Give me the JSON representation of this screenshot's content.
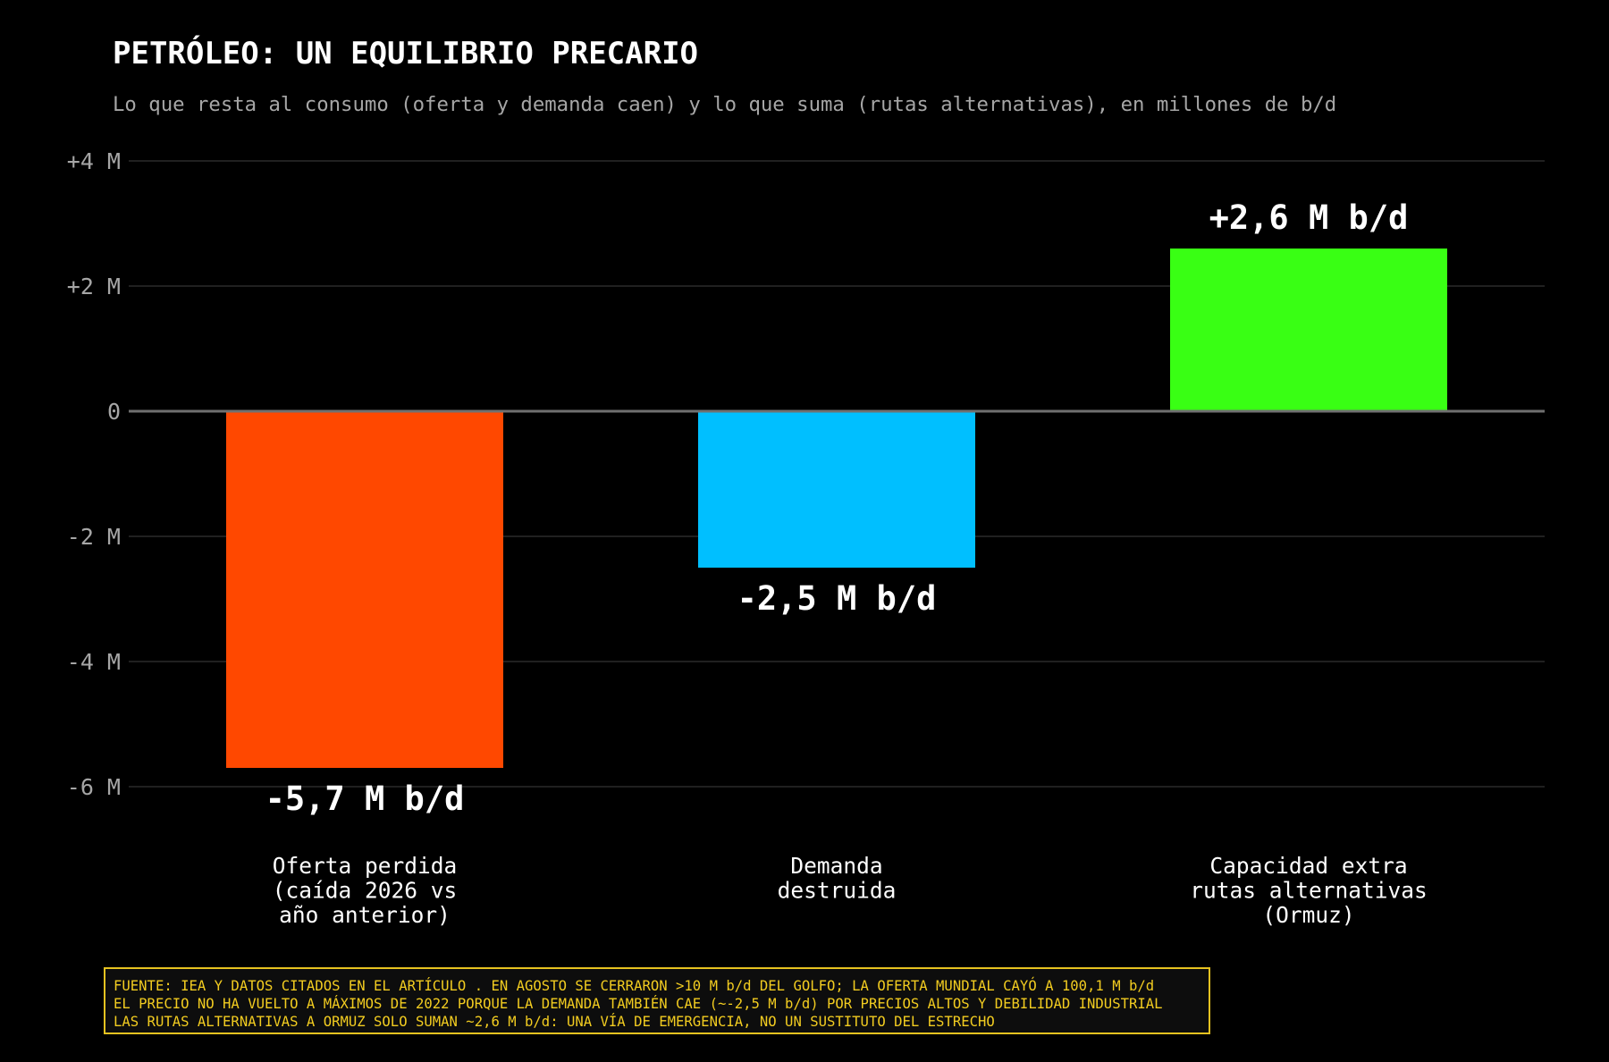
{
  "chart_data": {
    "type": "bar",
    "title": "PETRÓLEO: UN EQUILIBRIO PRECARIO",
    "subtitle": "Lo que resta al consumo (oferta y demanda caen) y lo que suma (rutas alternativas), en millones de b/d",
    "categories": [
      [
        "Oferta perdida",
        "(caída 2026 vs",
        "año anterior)"
      ],
      [
        "Demanda",
        "destruida"
      ],
      [
        "Capacidad extra",
        "rutas alternativas",
        "(Ormuz)"
      ]
    ],
    "values": [
      -5.7,
      -2.5,
      2.6
    ],
    "data_labels": [
      "-5,7 M b/d",
      "-2,5 M b/d",
      "+2,6 M b/d"
    ],
    "bar_colors": [
      "#ff4800",
      "#00bfff",
      "#39ff14"
    ],
    "ylim": [
      -6,
      4
    ],
    "yticks": [
      4,
      2,
      0,
      -2,
      -4,
      -6
    ],
    "ytick_labels": [
      "+4 M",
      "+2 M",
      "0",
      "-2 M",
      "-4 M",
      "-6 M"
    ],
    "grid": true,
    "xlabel": "",
    "ylabel": ""
  },
  "notes": [
    "FUENTE: IEA Y DATOS CITADOS EN EL ARTÍCULO . EN AGOSTO SE CERRARON >10 M b/d DEL GOLFO; LA OFERTA MUNDIAL CAYÓ A 100,1 M b/d",
    "EL PRECIO NO HA VUELTO A MÁXIMOS DE 2022 PORQUE LA DEMANDA TAMBIÉN CAE (~-2,5 M b/d) POR PRECIOS ALTOS Y DEBILIDAD INDUSTRIAL",
    "LAS RUTAS ALTERNATIVAS A ORMUZ SOLO SUMAN ~2,6 M b/d: UNA VÍA DE EMERGENCIA, NO UN SUSTITUTO DEL ESTRECHO"
  ],
  "colors": {
    "background": "#000000",
    "title": "#ffffff",
    "subtitle": "#a6a6a6",
    "grid": "#2b2b2b",
    "zero_line": "#707070",
    "note_text": "#f2cc20",
    "note_border": "#e6c220"
  }
}
